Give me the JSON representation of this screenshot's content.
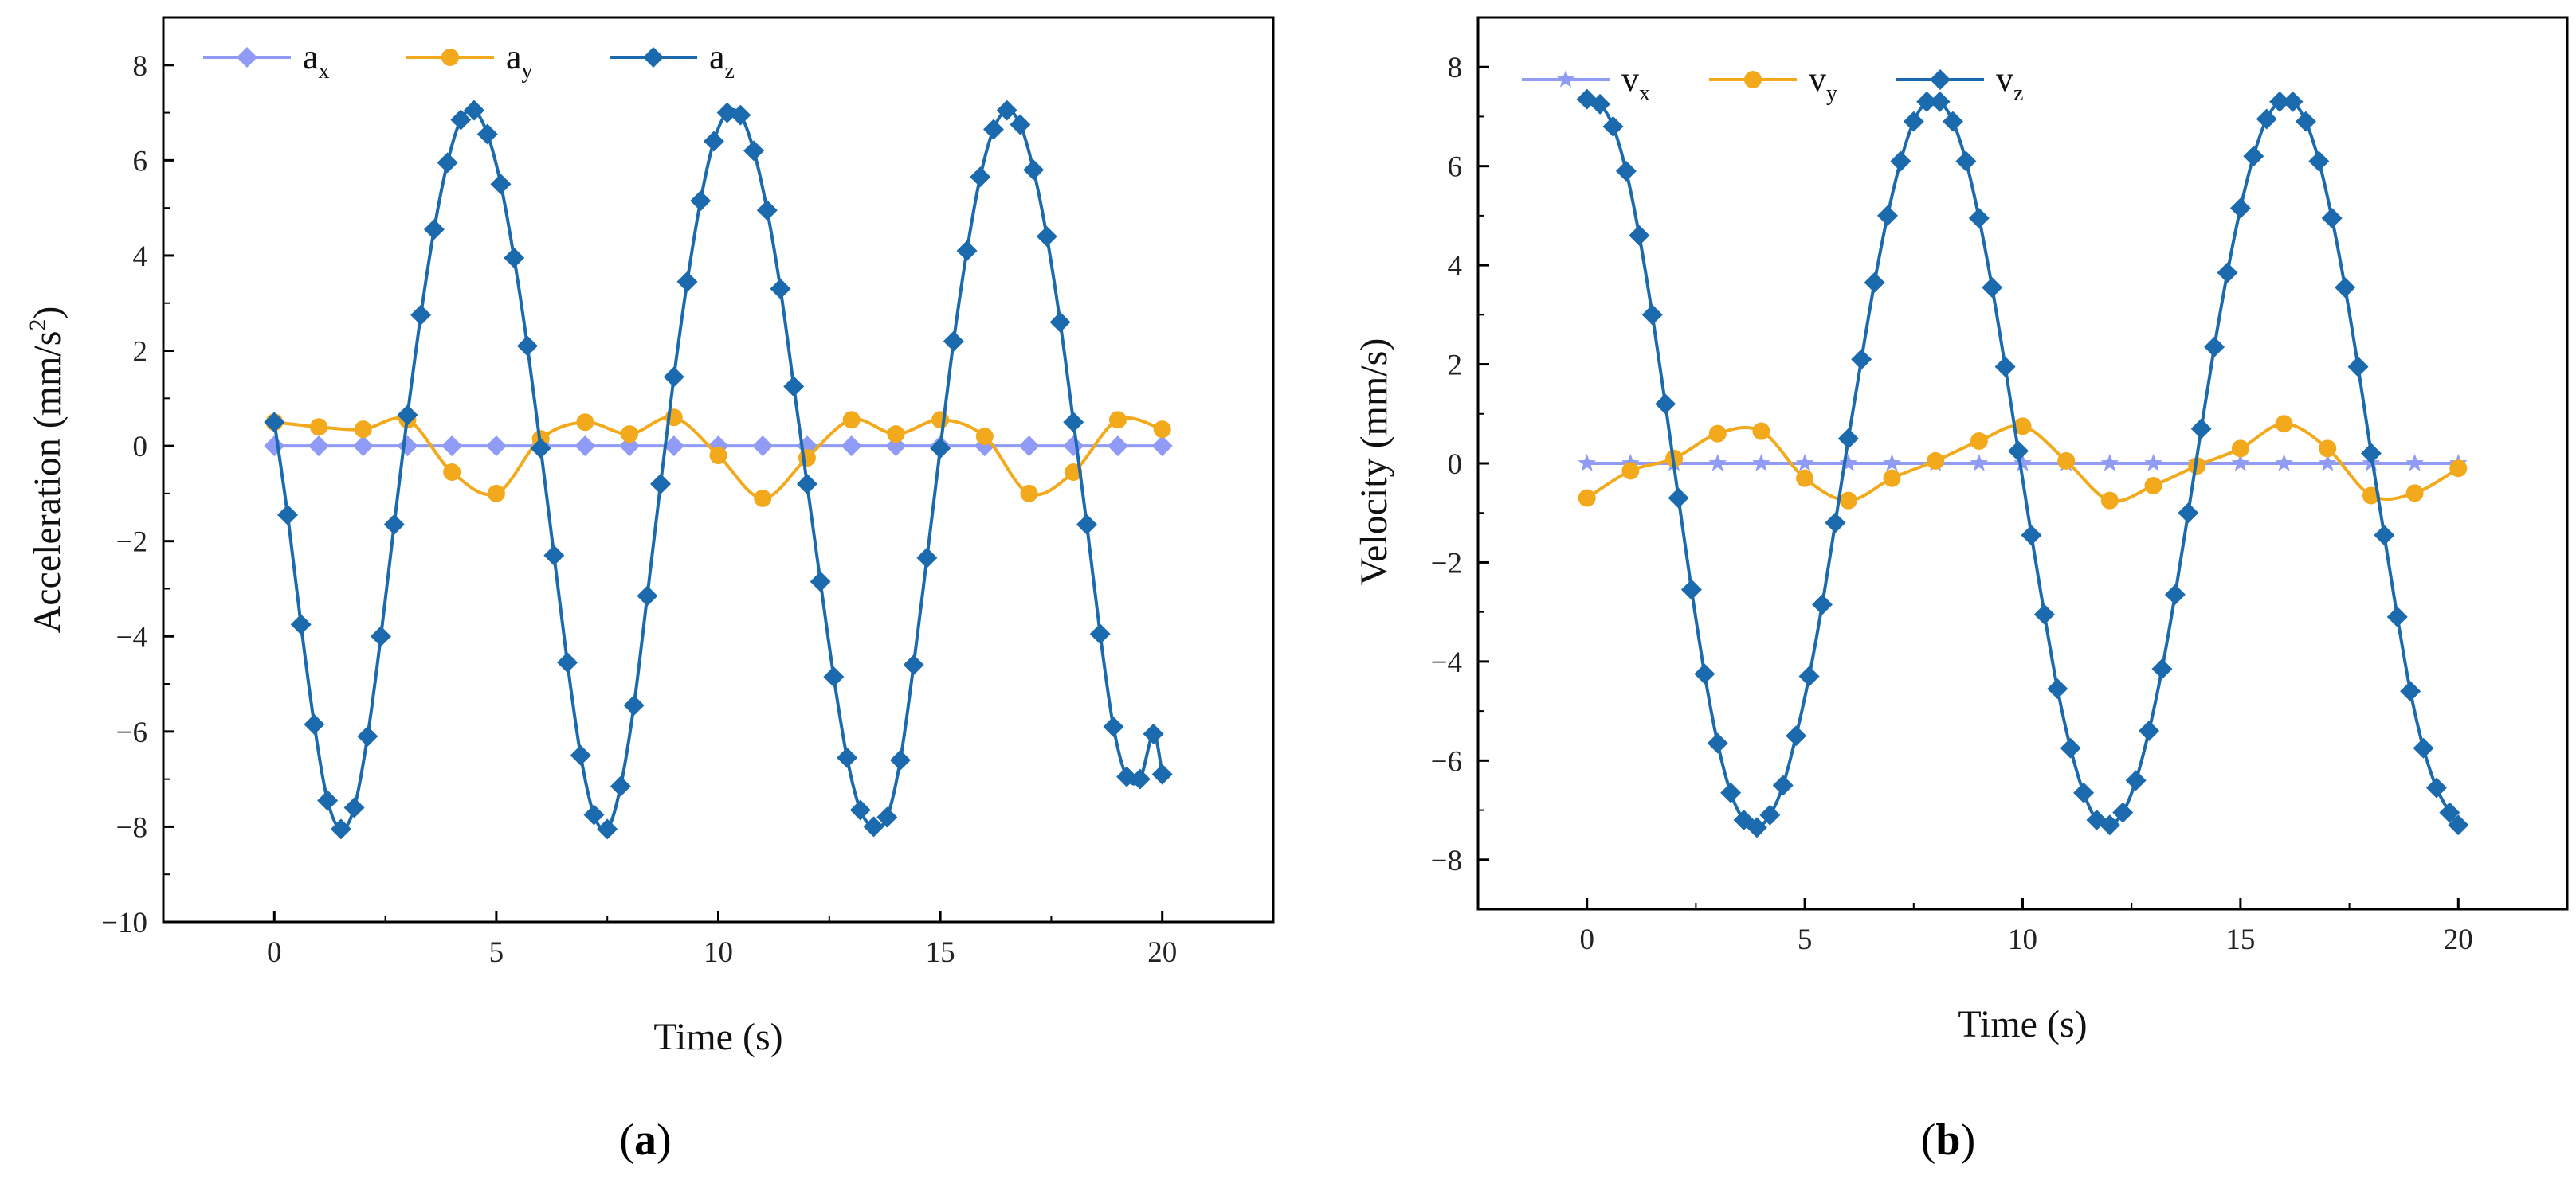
{
  "colors": {
    "x": "#8f9bf5",
    "y": "#f2a91c",
    "z": "#1b6aae",
    "axis": "#000000"
  },
  "chart_data": [
    {
      "type": "line",
      "panel_label": "a",
      "xlabel": "Time (s)",
      "ylabel": "Acceleration (mm/s2)",
      "ylabel_main": "Acceleration (mm/s",
      "ylabel_sup": "2",
      "ylabel_tail": ")",
      "xlim": [
        -2.5,
        22.5
      ],
      "ylim": [
        -10,
        9
      ],
      "xticks": [
        0,
        5,
        10,
        15,
        20
      ],
      "yticks": [
        -10,
        -8,
        -6,
        -4,
        -2,
        0,
        2,
        4,
        6,
        8
      ],
      "xtick_labels": [
        "0",
        "5",
        "10",
        "15",
        "20"
      ],
      "ytick_labels": [
        "−10",
        "−8",
        "−6",
        "−4",
        "−2",
        "0",
        "2",
        "4",
        "6",
        "8"
      ],
      "legend_position": "top-left",
      "series": [
        {
          "key": "x",
          "name": "ax",
          "base": "a",
          "sub": "x",
          "marker": "diamond",
          "x": [
            0,
            1,
            2,
            3,
            4,
            5,
            6,
            7,
            8,
            9,
            10,
            11,
            12,
            13,
            14,
            15,
            16,
            17,
            18,
            19,
            20
          ],
          "y": [
            0,
            0,
            0,
            0,
            0,
            0,
            0,
            0,
            0,
            0,
            0,
            0,
            0,
            0,
            0,
            0,
            0,
            0,
            0,
            0,
            0
          ]
        },
        {
          "key": "y",
          "name": "ay",
          "base": "a",
          "sub": "y",
          "marker": "circle",
          "x": [
            0,
            1,
            2,
            3,
            4,
            5,
            6,
            7,
            8,
            9,
            10,
            11,
            12,
            13,
            14,
            15,
            16,
            17,
            18,
            19,
            20
          ],
          "y": [
            0.5,
            0.4,
            0.35,
            0.55,
            -0.55,
            -1.0,
            0.15,
            0.5,
            0.25,
            0.6,
            -0.2,
            -1.1,
            -0.25,
            0.55,
            0.25,
            0.55,
            0.2,
            -1.0,
            -0.55,
            0.55,
            0.35
          ]
        },
        {
          "key": "z",
          "name": "az",
          "base": "a",
          "sub": "z",
          "marker": "diamond",
          "x": [
            0,
            0.3,
            0.6,
            0.9,
            1.2,
            1.5,
            1.8,
            2.1,
            2.4,
            2.7,
            3.0,
            3.3,
            3.6,
            3.9,
            4.2,
            4.5,
            4.8,
            5.1,
            5.4,
            5.7,
            6.0,
            6.3,
            6.6,
            6.9,
            7.2,
            7.5,
            7.8,
            8.1,
            8.4,
            8.7,
            9.0,
            9.3,
            9.6,
            9.9,
            10.2,
            10.5,
            10.8,
            11.1,
            11.4,
            11.7,
            12.0,
            12.3,
            12.6,
            12.9,
            13.2,
            13.5,
            13.8,
            14.1,
            14.4,
            14.7,
            15.0,
            15.3,
            15.6,
            15.9,
            16.2,
            16.5,
            16.8,
            17.1,
            17.4,
            17.7,
            18.0,
            18.3,
            18.6,
            18.9,
            19.2,
            19.5,
            19.8,
            20.0
          ],
          "y": [
            0.5,
            -1.45,
            -3.75,
            -5.85,
            -7.45,
            -8.05,
            -7.6,
            -6.1,
            -4.0,
            -1.65,
            0.65,
            2.75,
            4.55,
            5.95,
            6.85,
            7.05,
            6.55,
            5.5,
            3.95,
            2.1,
            -0.05,
            -2.3,
            -4.55,
            -6.5,
            -7.75,
            -8.05,
            -7.15,
            -5.45,
            -3.15,
            -0.8,
            1.45,
            3.45,
            5.15,
            6.4,
            7.0,
            6.95,
            6.2,
            4.95,
            3.3,
            1.25,
            -0.8,
            -2.85,
            -4.85,
            -6.55,
            -7.65,
            -8.0,
            -7.8,
            -6.6,
            -4.6,
            -2.35,
            -0.05,
            2.2,
            4.1,
            5.65,
            6.65,
            7.05,
            6.75,
            5.8,
            4.4,
            2.6,
            0.5,
            -1.65,
            -3.95,
            -5.9,
            -6.95,
            -7.0,
            -6.05,
            -6.9
          ]
        }
      ]
    },
    {
      "type": "line",
      "panel_label": "b",
      "xlabel": "Time (s)",
      "ylabel": "Velocity (mm/s)",
      "xlim": [
        -2.5,
        22.5
      ],
      "ylim": [
        -9,
        9
      ],
      "xticks": [
        0,
        5,
        10,
        15,
        20
      ],
      "yticks": [
        -8,
        -6,
        -4,
        -2,
        0,
        2,
        4,
        6,
        8
      ],
      "xtick_labels": [
        "0",
        "5",
        "10",
        "15",
        "20"
      ],
      "ytick_labels": [
        "−8",
        "−6",
        "−4",
        "−2",
        "0",
        "2",
        "4",
        "6",
        "8"
      ],
      "legend_position": "top-left",
      "series": [
        {
          "key": "x",
          "name": "vx",
          "base": "v",
          "sub": "x",
          "marker": "star",
          "x": [
            0,
            1,
            2,
            3,
            4,
            5,
            6,
            7,
            8,
            9,
            10,
            11,
            12,
            13,
            14,
            15,
            16,
            17,
            18,
            19,
            20
          ],
          "y": [
            0,
            0,
            0,
            0,
            0,
            0,
            0,
            0,
            0,
            0,
            0,
            0,
            0,
            0,
            0,
            0,
            0,
            0,
            0,
            0,
            0
          ]
        },
        {
          "key": "y",
          "name": "vy",
          "base": "v",
          "sub": "y",
          "marker": "circle",
          "x": [
            0,
            1,
            2,
            3,
            4,
            5,
            6,
            7,
            8,
            9,
            10,
            11,
            12,
            13,
            14,
            15,
            16,
            17,
            18,
            19,
            20
          ],
          "y": [
            -0.7,
            -0.15,
            0.1,
            0.6,
            0.65,
            -0.3,
            -0.75,
            -0.3,
            0.05,
            0.45,
            0.75,
            0.05,
            -0.75,
            -0.45,
            -0.05,
            0.3,
            0.8,
            0.3,
            -0.65,
            -0.6,
            -0.1
          ]
        },
        {
          "key": "z",
          "name": "vz",
          "base": "v",
          "sub": "z",
          "marker": "diamond",
          "x": [
            0,
            0.3,
            0.6,
            0.9,
            1.2,
            1.5,
            1.8,
            2.1,
            2.4,
            2.7,
            3.0,
            3.3,
            3.6,
            3.9,
            4.2,
            4.5,
            4.8,
            5.1,
            5.4,
            5.7,
            6.0,
            6.3,
            6.6,
            6.9,
            7.2,
            7.5,
            7.8,
            8.1,
            8.4,
            8.7,
            9.0,
            9.3,
            9.6,
            9.9,
            10.2,
            10.5,
            10.8,
            11.1,
            11.4,
            11.7,
            12.0,
            12.3,
            12.6,
            12.9,
            13.2,
            13.5,
            13.8,
            14.1,
            14.4,
            14.7,
            15.0,
            15.3,
            15.6,
            15.9,
            16.2,
            16.5,
            16.8,
            17.1,
            17.4,
            17.7,
            18.0,
            18.3,
            18.6,
            18.9,
            19.2,
            19.5,
            19.8,
            20.0
          ],
          "y": [
            7.35,
            7.25,
            6.8,
            5.9,
            4.6,
            3.0,
            1.2,
            -0.7,
            -2.55,
            -4.25,
            -5.65,
            -6.65,
            -7.2,
            -7.35,
            -7.1,
            -6.5,
            -5.5,
            -4.3,
            -2.85,
            -1.2,
            0.5,
            2.1,
            3.65,
            5.0,
            6.1,
            6.9,
            7.3,
            7.3,
            6.9,
            6.1,
            4.95,
            3.55,
            1.95,
            0.25,
            -1.45,
            -3.05,
            -4.55,
            -5.75,
            -6.65,
            -7.2,
            -7.3,
            -7.05,
            -6.4,
            -5.4,
            -4.15,
            -2.65,
            -1.0,
            0.7,
            2.35,
            3.85,
            5.15,
            6.2,
            6.95,
            7.3,
            7.3,
            6.9,
            6.1,
            4.95,
            3.55,
            1.95,
            0.2,
            -1.45,
            -3.1,
            -4.6,
            -5.75,
            -6.55,
            -7.05,
            -7.3
          ]
        }
      ]
    }
  ]
}
